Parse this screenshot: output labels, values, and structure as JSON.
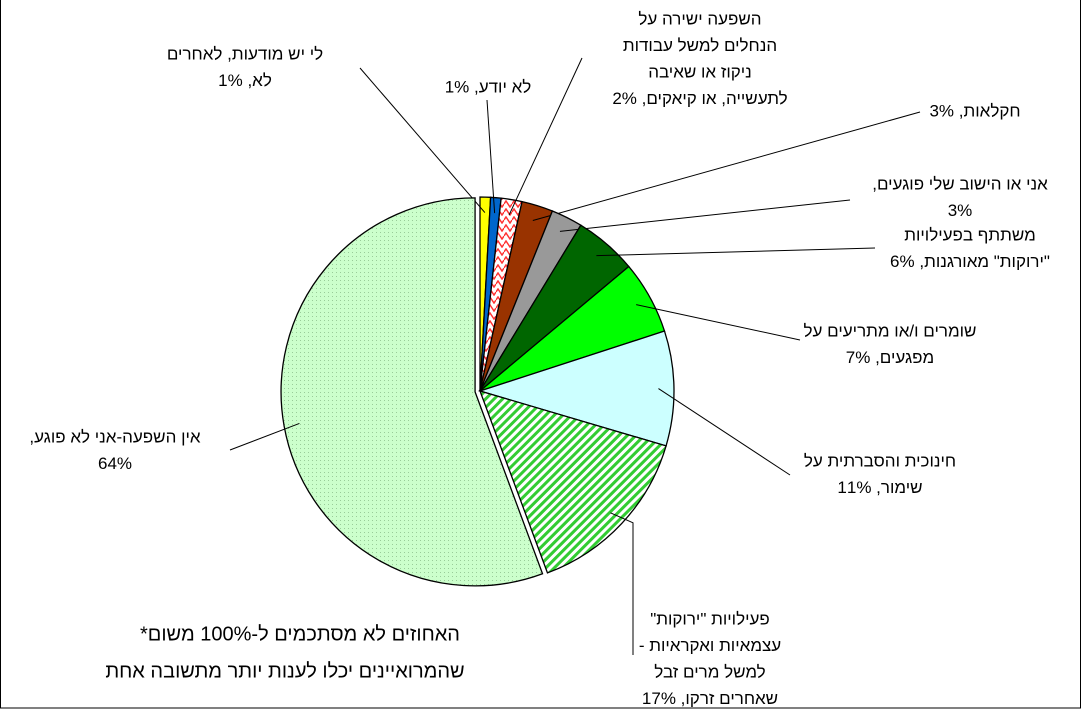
{
  "chart_data": {
    "type": "pie",
    "categories": [
      "לי יש מודעות, לאחרים לא",
      "לא יודע",
      "השפעה ישירה על הנחלים למשל עבודות ניקוז או שאיבה לתעשייה, או קיאקים",
      "חקלאות",
      "אני או הישוב שלי פוגעים",
      "משתתף בפעילויות \"ירוקות\" מאורגנות",
      "שומרים ו/או מתריעים על מפגעים",
      "חינוכית והסברתית על שימור",
      "פעילויות \"ירוקות\" עצמאיות ואקראיות - למשל מרים זבל שאחרים זרקו",
      "אין השפעה-אני לא פוגע"
    ],
    "values": [
      1,
      1,
      2,
      3,
      3,
      6,
      7,
      11,
      17,
      64
    ],
    "labels": [
      [
        "לי יש מודעות, לאחרים",
        "לא, 1%"
      ],
      [
        "לא יודע, 1%"
      ],
      [
        "השפעה ישירה על",
        "הנחלים למשל עבודות",
        "ניקוז או שאיבה",
        "לתעשייה, או קיאקים, 2%"
      ],
      [
        "חקלאות, 3%"
      ],
      [
        "אני או הישוב שלי פוגעים,",
        "3%"
      ],
      [
        "משתתף בפעילויות",
        "\"ירוקות\" מאורגנות, 6%"
      ],
      [
        "שומרים  ו/או מתריעים על",
        "מפגעים, 7%"
      ],
      [
        "חינוכית והסברתית על",
        "שימור, 11%"
      ],
      [
        "פעילויות \"ירוקות\"",
        "עצמאיות ואקראיות -",
        "למשל מרים זבל",
        "שאחרים זרקו, 17%"
      ],
      [
        "אין השפעה-אני לא פוגע,",
        "64%"
      ]
    ],
    "colors": [
      "#ffff00",
      "#0066cc",
      "#ff3333",
      "#993300",
      "#999999",
      "#006600",
      "#00ff00",
      "#ccffff",
      "#33cc33",
      "#ccffcc"
    ],
    "annotations": [
      "האחוזים לא מסתכמים ל-100% משום*",
      "שהמרואיינים יכלו לענות יותר מתשובה אחת"
    ]
  }
}
